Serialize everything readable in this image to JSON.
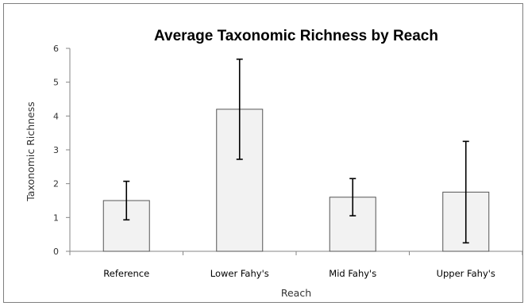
{
  "chart_data": {
    "type": "bar",
    "title": "Average Taxonomic Richness by Reach",
    "xlabel": "Reach",
    "ylabel": "Taxonomic Richness",
    "categories": [
      "Reference",
      "Lower Fahy's",
      "Mid Fahy's",
      "Upper Fahy's"
    ],
    "values": [
      1.5,
      4.2,
      1.6,
      1.75
    ],
    "error_low": [
      0.93,
      2.72,
      1.05,
      0.25
    ],
    "error_high": [
      2.07,
      5.68,
      2.15,
      3.25
    ],
    "ylim": [
      0,
      6
    ],
    "yticks": [
      0,
      1,
      2,
      3,
      4,
      5,
      6
    ],
    "grid": false,
    "legend": "none",
    "bar_fill": "#f2f2f2",
    "bar_stroke": "#555555",
    "errorbar_color": "#000000"
  }
}
